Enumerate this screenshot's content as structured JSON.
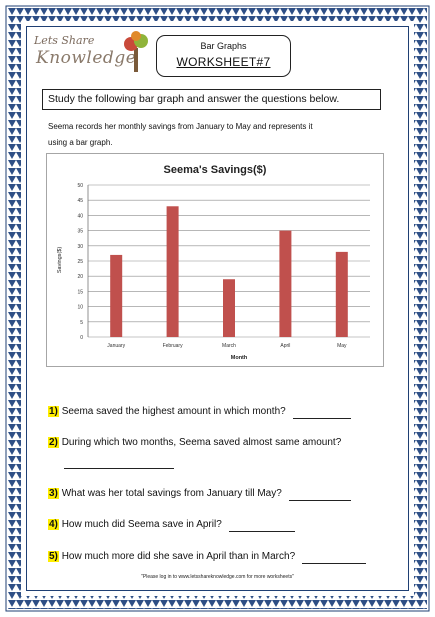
{
  "brand": {
    "logo_line1": "Lets Share",
    "logo_line2": "Knowledge"
  },
  "header": {
    "subject": "Bar Graphs",
    "worksheet": "WORKSHEET#7"
  },
  "instructions": "Study the following bar graph and answer the questions below.",
  "intro_line1": "Seema records her monthly savings from January to May and represents it",
  "intro_line2": "using a bar graph.",
  "chart_data": {
    "type": "bar",
    "title": "Seema's Savings($)",
    "xlabel": "Month",
    "ylabel": "Savings($)",
    "categories": [
      "January",
      "February",
      "March",
      "April",
      "May"
    ],
    "values": [
      27,
      43,
      19,
      35,
      28
    ],
    "ylim": [
      0,
      50
    ],
    "yticks": [
      0,
      5,
      10,
      15,
      20,
      25,
      30,
      35,
      40,
      45,
      50
    ],
    "grid": true,
    "bar_color": "#c0504d"
  },
  "questions": [
    {
      "num": "1)",
      "text": "Seema saved the highest amount in which month?"
    },
    {
      "num": "2)",
      "text": "During which two months, Seema saved almost same amount?"
    },
    {
      "num": "3)",
      "text": "What was her total savings from January till May?"
    },
    {
      "num": "4)",
      "text": "How much did Seema save in April?"
    },
    {
      "num": "5)",
      "text": "How much more did she save in April than in March?"
    }
  ],
  "footer": "\"Please log in to www.letsshareknowledge.com for more worksheets\"",
  "colors": {
    "border_blue": "#1f3f73",
    "highlight": "#ffee00"
  }
}
